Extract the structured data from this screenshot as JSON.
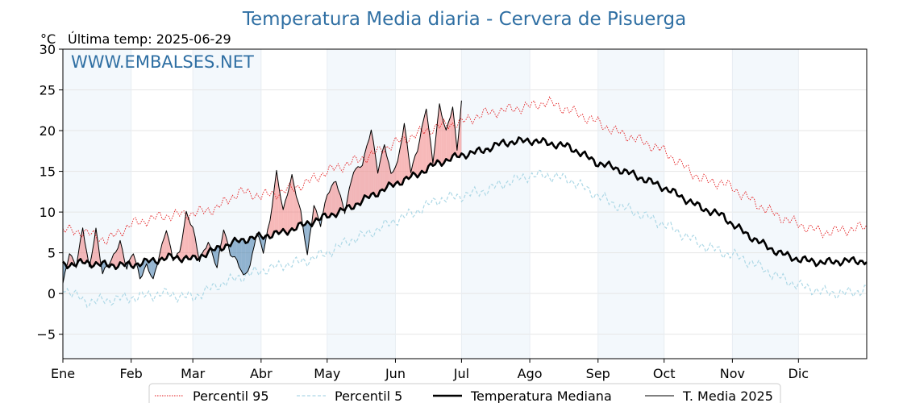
{
  "chart_data": {
    "type": "line",
    "title": "Temperatura Media diaria - Cervera de Pisuerga",
    "subtitle": "Última temp: 2025-06-29",
    "ylabel": "°C",
    "watermark": "WWW.EMBALSES.NET",
    "ylim": [
      -8,
      30
    ],
    "yticks": [
      -5,
      0,
      5,
      10,
      15,
      20,
      25,
      30
    ],
    "xlim": [
      0,
      365
    ],
    "months": [
      "Ene",
      "Feb",
      "Mar",
      "Abr",
      "May",
      "Jun",
      "Jul",
      "Ago",
      "Sep",
      "Oct",
      "Nov",
      "Dic"
    ],
    "month_starts": [
      0,
      31,
      59,
      90,
      120,
      151,
      181,
      212,
      243,
      273,
      304,
      334
    ],
    "shaded_month_bands": [
      [
        0,
        31
      ],
      [
        59,
        90
      ],
      [
        120,
        151
      ],
      [
        181,
        212
      ],
      [
        243,
        273
      ],
      [
        304,
        334
      ]
    ],
    "grid": true,
    "legend_position": "bottom",
    "fill_above_color": "#f08080",
    "fill_below_color": "#2e6da4",
    "series": [
      {
        "name": "Percentil 95",
        "color": "#e31a1c",
        "style": "dotted",
        "anchors": [
          [
            0,
            7.8
          ],
          [
            10,
            7.5
          ],
          [
            20,
            6.5
          ],
          [
            31,
            8.5
          ],
          [
            45,
            9.5
          ],
          [
            59,
            9.8
          ],
          [
            70,
            10.5
          ],
          [
            80,
            12.5
          ],
          [
            90,
            12.0
          ],
          [
            100,
            12.5
          ],
          [
            110,
            13.5
          ],
          [
            120,
            15.0
          ],
          [
            130,
            16.0
          ],
          [
            140,
            17.0
          ],
          [
            151,
            18.5
          ],
          [
            160,
            19.5
          ],
          [
            170,
            20.5
          ],
          [
            181,
            21.0
          ],
          [
            190,
            22.0
          ],
          [
            200,
            22.5
          ],
          [
            212,
            23.0
          ],
          [
            220,
            23.5
          ],
          [
            230,
            22.5
          ],
          [
            243,
            21.0
          ],
          [
            250,
            20.0
          ],
          [
            260,
            19.0
          ],
          [
            273,
            17.5
          ],
          [
            280,
            16.0
          ],
          [
            290,
            14.0
          ],
          [
            300,
            13.5
          ],
          [
            304,
            13.0
          ],
          [
            315,
            11.0
          ],
          [
            325,
            9.5
          ],
          [
            334,
            8.5
          ],
          [
            345,
            7.5
          ],
          [
            355,
            7.8
          ],
          [
            365,
            8.2
          ]
        ]
      },
      {
        "name": "Percentil 5",
        "color": "#add8e6",
        "style": "dashed",
        "anchors": [
          [
            0,
            0.8
          ],
          [
            10,
            -1.0
          ],
          [
            20,
            -0.8
          ],
          [
            31,
            -0.5
          ],
          [
            45,
            0.0
          ],
          [
            59,
            -0.5
          ],
          [
            70,
            1.0
          ],
          [
            80,
            2.0
          ],
          [
            90,
            2.8
          ],
          [
            100,
            3.5
          ],
          [
            110,
            4.0
          ],
          [
            120,
            5.0
          ],
          [
            130,
            6.5
          ],
          [
            140,
            7.5
          ],
          [
            151,
            9.0
          ],
          [
            160,
            10.0
          ],
          [
            170,
            11.5
          ],
          [
            181,
            12.0
          ],
          [
            190,
            12.5
          ],
          [
            200,
            13.5
          ],
          [
            212,
            14.5
          ],
          [
            220,
            14.5
          ],
          [
            230,
            14.0
          ],
          [
            243,
            12.0
          ],
          [
            250,
            11.0
          ],
          [
            260,
            10.0
          ],
          [
            273,
            8.5
          ],
          [
            280,
            7.5
          ],
          [
            290,
            6.0
          ],
          [
            300,
            5.0
          ],
          [
            304,
            4.8
          ],
          [
            315,
            3.5
          ],
          [
            325,
            2.0
          ],
          [
            334,
            1.0
          ],
          [
            345,
            0.2
          ],
          [
            355,
            0.0
          ],
          [
            365,
            0.5
          ]
        ]
      },
      {
        "name": "Temperatura Mediana",
        "color": "#000000",
        "style": "thick",
        "anchors": [
          [
            0,
            3.5
          ],
          [
            10,
            3.8
          ],
          [
            20,
            3.5
          ],
          [
            31,
            3.5
          ],
          [
            40,
            4.0
          ],
          [
            50,
            4.5
          ],
          [
            59,
            4.2
          ],
          [
            70,
            5.5
          ],
          [
            80,
            6.5
          ],
          [
            90,
            7.0
          ],
          [
            100,
            7.5
          ],
          [
            110,
            8.5
          ],
          [
            120,
            9.5
          ],
          [
            130,
            10.5
          ],
          [
            140,
            12.0
          ],
          [
            151,
            13.5
          ],
          [
            160,
            14.5
          ],
          [
            170,
            16.0
          ],
          [
            181,
            17.0
          ],
          [
            190,
            17.5
          ],
          [
            200,
            18.5
          ],
          [
            212,
            18.8
          ],
          [
            220,
            18.5
          ],
          [
            230,
            18.0
          ],
          [
            243,
            16.0
          ],
          [
            250,
            15.5
          ],
          [
            260,
            14.5
          ],
          [
            273,
            13.0
          ],
          [
            280,
            12.0
          ],
          [
            290,
            10.5
          ],
          [
            300,
            9.5
          ],
          [
            304,
            8.5
          ],
          [
            315,
            6.5
          ],
          [
            325,
            5.0
          ],
          [
            334,
            4.2
          ],
          [
            345,
            3.8
          ],
          [
            355,
            4.0
          ],
          [
            365,
            4.0
          ]
        ]
      },
      {
        "name": "T. Media 2025",
        "color": "#000000",
        "style": "thin",
        "anchors": [
          [
            0,
            1.0
          ],
          [
            3,
            5.0
          ],
          [
            6,
            3.5
          ],
          [
            9,
            8.0
          ],
          [
            12,
            3.0
          ],
          [
            15,
            8.0
          ],
          [
            18,
            2.5
          ],
          [
            22,
            4.0
          ],
          [
            26,
            6.5
          ],
          [
            29,
            3.0
          ],
          [
            32,
            5.0
          ],
          [
            35,
            2.0
          ],
          [
            38,
            3.5
          ],
          [
            41,
            1.5
          ],
          [
            44,
            5.0
          ],
          [
            47,
            8.0
          ],
          [
            50,
            4.0
          ],
          [
            53,
            5.0
          ],
          [
            56,
            10.0
          ],
          [
            59,
            8.0
          ],
          [
            62,
            4.0
          ],
          [
            66,
            6.5
          ],
          [
            70,
            3.0
          ],
          [
            73,
            8.0
          ],
          [
            76,
            5.0
          ],
          [
            79,
            4.0
          ],
          [
            82,
            2.0
          ],
          [
            85,
            3.5
          ],
          [
            88,
            7.5
          ],
          [
            91,
            5.0
          ],
          [
            94,
            9.0
          ],
          [
            97,
            15.0
          ],
          [
            100,
            10.0
          ],
          [
            104,
            14.5
          ],
          [
            108,
            10.0
          ],
          [
            111,
            4.5
          ],
          [
            114,
            11.0
          ],
          [
            117,
            8.5
          ],
          [
            120,
            12.0
          ],
          [
            124,
            14.0
          ],
          [
            128,
            10.0
          ],
          [
            132,
            15.0
          ],
          [
            136,
            16.0
          ],
          [
            140,
            20.0
          ],
          [
            143,
            15.0
          ],
          [
            146,
            18.5
          ],
          [
            149,
            14.5
          ],
          [
            152,
            16.0
          ],
          [
            155,
            21.0
          ],
          [
            158,
            15.0
          ],
          [
            161,
            17.5
          ],
          [
            165,
            23.0
          ],
          [
            168,
            16.0
          ],
          [
            171,
            23.0
          ],
          [
            174,
            20.0
          ],
          [
            177,
            23.0
          ],
          [
            179,
            17.5
          ],
          [
            181,
            23.5
          ]
        ]
      }
    ]
  }
}
